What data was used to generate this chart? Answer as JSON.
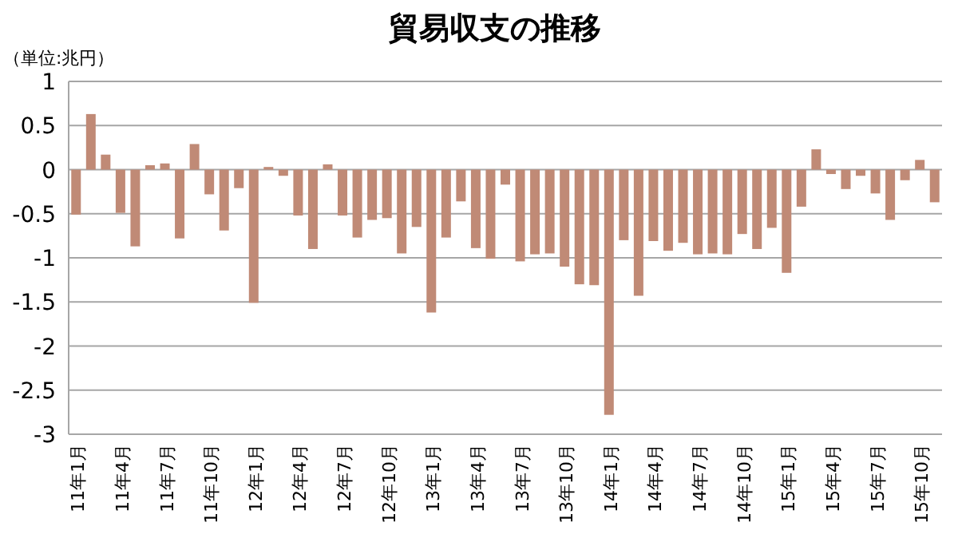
{
  "chart_data": {
    "type": "bar",
    "title": "貿易収支の推移",
    "annotations": [
      "（単位:兆円）"
    ],
    "categories": [
      "11年1月",
      null,
      null,
      "11年4月",
      null,
      null,
      "11年7月",
      null,
      null,
      "11年10月",
      null,
      null,
      "12年1月",
      null,
      null,
      "12年4月",
      null,
      null,
      "12年7月",
      null,
      null,
      "12年10月",
      null,
      null,
      "13年1月",
      null,
      null,
      "13年4月",
      null,
      null,
      "13年7月",
      null,
      null,
      "13年10月",
      null,
      null,
      "14年1月",
      null,
      null,
      "14年4月",
      null,
      null,
      "14年7月",
      null,
      null,
      "14年10月",
      null,
      null,
      "15年1月",
      null,
      null,
      "15年4月",
      null,
      null,
      "15年7月",
      null,
      null,
      "15年10月",
      null
    ],
    "values": [
      -0.51,
      0.63,
      0.17,
      -0.49,
      -0.87,
      0.05,
      0.07,
      -0.78,
      0.29,
      -0.28,
      -0.69,
      -0.21,
      -1.51,
      0.03,
      -0.07,
      -0.52,
      -0.9,
      0.06,
      -0.52,
      -0.77,
      -0.57,
      -0.55,
      -0.95,
      -0.65,
      -1.62,
      -0.77,
      -0.36,
      -0.89,
      -1.01,
      -0.17,
      -1.04,
      -0.96,
      -0.95,
      -1.1,
      -1.3,
      -1.31,
      -2.78,
      -0.8,
      -1.43,
      -0.81,
      -0.92,
      -0.83,
      -0.96,
      -0.95,
      -0.96,
      -0.73,
      -0.9,
      -0.66,
      -1.17,
      -0.42,
      0.23,
      -0.05,
      -0.22,
      -0.07,
      -0.27,
      -0.57,
      -0.12,
      0.11,
      -0.37
    ],
    "color": "#c08a76",
    "ylim": [
      -3,
      1
    ],
    "yticks": [
      -3,
      -2.5,
      -2,
      -1.5,
      -1,
      -0.5,
      0,
      0.5,
      1
    ],
    "grid": "y"
  }
}
